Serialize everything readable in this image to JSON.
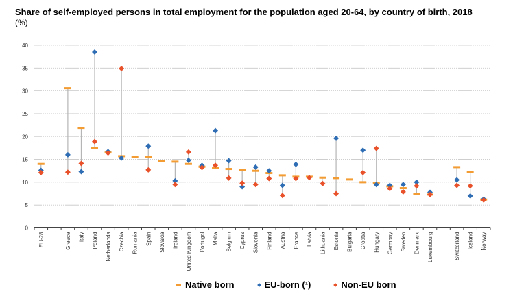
{
  "chart_data": {
    "type": "scatter",
    "title": "Share of self-employed persons in total employment for the population aged 20-64, by country of birth, 2018",
    "subtitle": "(%)",
    "xlabel": "",
    "ylabel": "",
    "ylim": [
      0,
      40
    ],
    "yticks": [
      0,
      5,
      10,
      15,
      20,
      25,
      30,
      35,
      40
    ],
    "grid": true,
    "legend_position": "bottom",
    "categories": [
      "EU-28",
      "",
      "Greece",
      "Italy",
      "Poland",
      "Netherlands",
      "Czechia",
      "Romania",
      "Spain",
      "Slovakia",
      "Ireland",
      "United Kingdom",
      "Portugal",
      "Malta",
      "Belgium",
      "Cyprus",
      "Slovenia",
      "Finland",
      "Austria",
      "France",
      "Latvia",
      "Lithuania",
      "Estonia",
      "Bulgaria",
      "Croatia",
      "Hungary",
      "Germany",
      "Sweden",
      "Denmark",
      "Luxembourg",
      "",
      "Switzerland",
      "Iceland",
      "Norway"
    ],
    "series": [
      {
        "name": "Native born",
        "color": "#f39c33",
        "marker": "dash",
        "values": [
          14.0,
          null,
          30.6,
          21.9,
          17.5,
          16.5,
          15.7,
          15.6,
          15.6,
          14.7,
          14.5,
          14.0,
          13.4,
          13.2,
          12.9,
          12.7,
          12.5,
          12.0,
          11.5,
          11.2,
          11.2,
          11.0,
          10.9,
          10.6,
          10.0,
          9.8,
          9.1,
          8.7,
          7.4,
          7.3,
          null,
          13.3,
          12.3,
          6.2
        ]
      },
      {
        "name": "EU-born (¹)",
        "color": "#2e6db4",
        "marker": "diamond",
        "values": [
          12.6,
          null,
          16.0,
          12.3,
          38.5,
          16.7,
          15.3,
          null,
          17.9,
          null,
          10.3,
          14.8,
          13.7,
          21.3,
          14.7,
          9.0,
          13.3,
          12.5,
          9.3,
          13.9,
          null,
          null,
          19.6,
          null,
          17.0,
          9.5,
          9.3,
          9.5,
          10.0,
          7.8,
          null,
          10.5,
          7.0,
          6.3
        ]
      },
      {
        "name": "Non-EU born",
        "color": "#e8512a",
        "marker": "diamond",
        "values": [
          12.1,
          null,
          12.2,
          14.1,
          18.9,
          16.4,
          34.9,
          null,
          12.7,
          null,
          9.5,
          16.6,
          13.2,
          13.7,
          10.9,
          9.8,
          9.5,
          10.8,
          7.1,
          10.8,
          11.0,
          9.7,
          7.5,
          null,
          12.1,
          17.4,
          8.6,
          7.9,
          9.2,
          7.3,
          null,
          9.3,
          9.2,
          6.1
        ]
      }
    ]
  },
  "legend": {
    "native": "Native born",
    "eu": "EU-born (¹)",
    "noneu": "Non-EU born"
  }
}
